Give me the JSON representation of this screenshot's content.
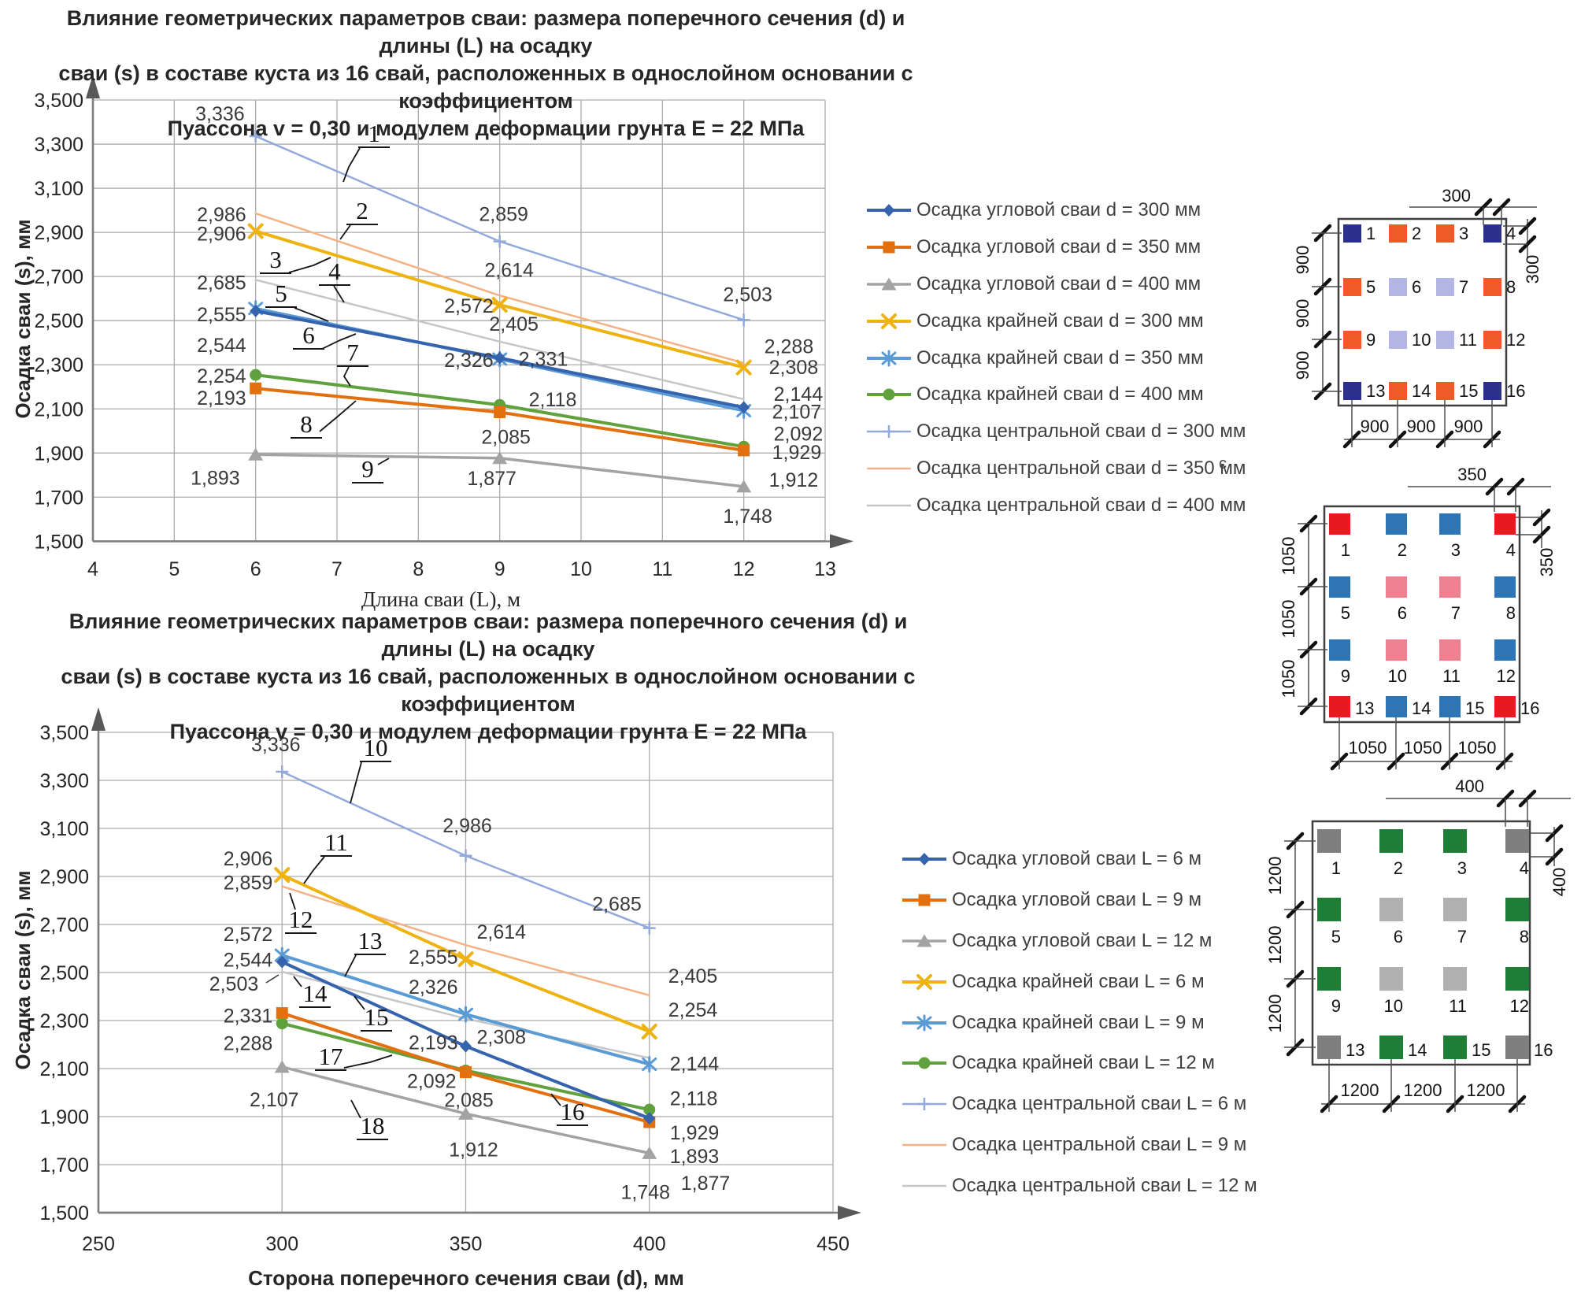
{
  "chart_data": [
    {
      "type": "line",
      "title_lines": [
        "Влияние геометрических параметров сваи: размера поперечного сечения (d) и длины (L) на осадку",
        "сваи (s) в составе куста из 16 свай, расположенных в однослойном основании с коэффициентом",
        "Пуассона v = 0,30 и модулем деформации грунта Е = 22 МПа"
      ],
      "xlabel": "Длина сваи (L), м",
      "ylabel": "Осадка сваи (s), мм",
      "x": [
        6,
        9,
        12
      ],
      "xlim": [
        4,
        13
      ],
      "x_ticks": [
        4,
        5,
        6,
        7,
        8,
        9,
        10,
        11,
        12,
        13
      ],
      "ylim": [
        1500,
        3500
      ],
      "y_tick_step": 200,
      "grid": true,
      "legend_position": "right",
      "series": [
        {
          "name": "Осадка угловой сваи d = 300 мм",
          "marker": "diamond",
          "color": "#3663AE",
          "width": 4,
          "values": [
            2544,
            2331,
            2107
          ]
        },
        {
          "name": "Осадка угловой сваи d = 350 мм",
          "marker": "square",
          "color": "#E2700F",
          "width": 4,
          "values": [
            2193,
            2085,
            1912
          ]
        },
        {
          "name": "Осадка угловой сваи d = 400 мм",
          "marker": "triangle",
          "color": "#A3A3A3",
          "width": 3.5,
          "values": [
            1893,
            1877,
            1748
          ]
        },
        {
          "name": "Осадка крайней сваи d = 300 мм",
          "marker": "x",
          "color": "#EEB211",
          "width": 4,
          "values": [
            2906,
            2572,
            2288
          ]
        },
        {
          "name": "Осадка крайней сваи d = 350 мм",
          "marker": "asterisk",
          "color": "#5B9BD5",
          "width": 4,
          "values": [
            2555,
            2326,
            2092
          ]
        },
        {
          "name": "Осадка крайней сваи d = 400 мм",
          "marker": "circle",
          "color": "#5FA23D",
          "width": 4,
          "values": [
            2254,
            2118,
            1929
          ]
        },
        {
          "name": "Осадка центральной сваи d = 300 мм",
          "marker": "plus",
          "color": "#93A9DC",
          "width": 2.5,
          "values": [
            3336,
            2859,
            2503
          ]
        },
        {
          "name": "Осадка центральной сваи d = 350 мм",
          "marker": "none",
          "color": "#F4B183",
          "width": 2.5,
          "values": [
            2986,
            2614,
            2308
          ]
        },
        {
          "name": "Осадка центральной сваи d = 400 мм",
          "marker": "none",
          "color": "#C6C6C6",
          "width": 2.5,
          "values": [
            2685,
            2405,
            2144
          ]
        }
      ],
      "callouts": [
        "1",
        "2",
        "3",
        "4",
        "5",
        "6",
        "7",
        "8",
        "9"
      ]
    },
    {
      "type": "line",
      "title_lines": [
        "Влияние геометрических параметров сваи: размера поперечного сечения (d) и длины (L) на осадку",
        "сваи (s) в составе куста из 16 свай, расположенных в однослойном основании с коэффициентом",
        "Пуассона v = 0,30 и модулем деформации грунта Е = 22 МПа"
      ],
      "xlabel": "Сторона поперечного сечения сваи (d), мм",
      "ylabel": "Осадка сваи (s), мм",
      "x": [
        300,
        350,
        400
      ],
      "xlim": [
        250,
        450
      ],
      "x_ticks": [
        250,
        300,
        350,
        400,
        450
      ],
      "ylim": [
        1500,
        3500
      ],
      "y_tick_step": 200,
      "grid": true,
      "legend_position": "right",
      "series": [
        {
          "name": "Осадка угловой сваи L = 6 м",
          "marker": "diamond",
          "color": "#3663AE",
          "width": 4,
          "values": [
            2544,
            2193,
            1893
          ]
        },
        {
          "name": "Осадка угловой сваи L = 9 м",
          "marker": "square",
          "color": "#E2700F",
          "width": 4,
          "values": [
            2331,
            2085,
            1877
          ]
        },
        {
          "name": "Осадка угловой сваи L = 12 м",
          "marker": "triangle",
          "color": "#A3A3A3",
          "width": 3.5,
          "values": [
            2107,
            1912,
            1748
          ]
        },
        {
          "name": "Осадка крайней сваи L = 6 м",
          "marker": "x",
          "color": "#EEB211",
          "width": 4,
          "values": [
            2906,
            2555,
            2254
          ]
        },
        {
          "name": "Осадка крайней сваи L = 9 м",
          "marker": "asterisk",
          "color": "#5B9BD5",
          "width": 4,
          "values": [
            2572,
            2326,
            2118
          ]
        },
        {
          "name": "Осадка крайней сваи L = 12 м",
          "marker": "circle",
          "color": "#5FA23D",
          "width": 4,
          "values": [
            2288,
            2092,
            1929
          ]
        },
        {
          "name": "Осадка центральной сваи L = 6 м",
          "marker": "plus",
          "color": "#93A9DC",
          "width": 2.5,
          "values": [
            3336,
            2986,
            2685
          ]
        },
        {
          "name": "Осадка центральной сваи L = 9 м",
          "marker": "none",
          "color": "#F4B183",
          "width": 2.5,
          "values": [
            2859,
            2614,
            2405
          ]
        },
        {
          "name": "Осадка центральной сваи L = 12 м",
          "marker": "none",
          "color": "#C6C6C6",
          "width": 2.5,
          "values": [
            2503,
            2308,
            2144
          ]
        }
      ],
      "callouts": [
        "10",
        "11",
        "12",
        "13",
        "14",
        "15",
        "16",
        "17",
        "18"
      ]
    }
  ],
  "diagrams": [
    {
      "pile_size_label": "300",
      "side_size_label": "300",
      "left_dims": [
        "900",
        "900",
        "900"
      ],
      "bottom_dims": [
        "900",
        "900",
        "900"
      ],
      "numbers": [
        "1",
        "2",
        "3",
        "4",
        "5",
        "6",
        "7",
        "8",
        "9",
        "10",
        "11",
        "12",
        "13",
        "14",
        "15",
        "16"
      ],
      "colors": {
        "corner": "#2D2F8F",
        "edge": "#F05A28",
        "center": "#B3B6E3"
      }
    },
    {
      "pile_size_label": "350",
      "side_size_label": "350",
      "left_dims": [
        "1050",
        "1050",
        "1050"
      ],
      "bottom_dims": [
        "1050",
        "1050",
        "1050"
      ],
      "numbers": [
        "1",
        "2",
        "3",
        "4",
        "5",
        "6",
        "7",
        "8",
        "9",
        "10",
        "11",
        "12",
        "13",
        "14",
        "15",
        "16"
      ],
      "colors": {
        "corner": "#E8191F",
        "edge": "#2E75B6",
        "center": "#F0808F"
      }
    },
    {
      "pile_size_label": "400",
      "side_size_label": "400",
      "left_dims": [
        "1200",
        "1200",
        "1200"
      ],
      "bottom_dims": [
        "1200",
        "1200",
        "1200"
      ],
      "numbers": [
        "1",
        "2",
        "3",
        "4",
        "5",
        "6",
        "7",
        "8",
        "9",
        "10",
        "11",
        "12",
        "13",
        "14",
        "15",
        "16"
      ],
      "colors": {
        "corner": "#7F7F7F",
        "edge": "#1E7E38",
        "center": "#B0B0B0"
      }
    }
  ],
  "stray_char": "ϲ"
}
